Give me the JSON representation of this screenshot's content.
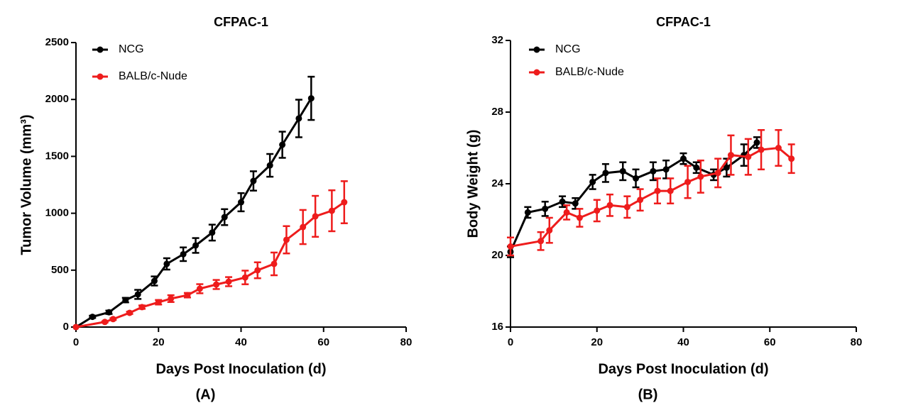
{
  "chart_data": [
    {
      "type": "line",
      "title": "CFPAC-1",
      "xlabel": "Days Post Inoculation (d)",
      "ylabel": "Tumor Volume (mm³)",
      "caption": "(A)",
      "xlim": [
        0,
        80
      ],
      "xticks": [
        0,
        20,
        40,
        60,
        80
      ],
      "ylim": [
        0,
        2500
      ],
      "yticks": [
        0,
        500,
        1000,
        1500,
        2000,
        2500
      ],
      "legend": "upper left",
      "series": [
        {
          "name": "NCG",
          "color": "#000000",
          "x": [
            0,
            4,
            8,
            12,
            15,
            19,
            22,
            26,
            29,
            33,
            36,
            40,
            43,
            47,
            50,
            54,
            57
          ],
          "values": [
            0,
            90,
            130,
            237,
            287,
            405,
            555,
            640,
            717,
            830,
            966,
            1097,
            1284,
            1421,
            1602,
            1833,
            2010
          ],
          "errors": [
            0,
            10,
            15,
            20,
            40,
            40,
            50,
            60,
            65,
            70,
            70,
            80,
            85,
            100,
            115,
            165,
            190
          ]
        },
        {
          "name": "BALB/c-Nude",
          "color": "#ee1c1c",
          "x": [
            0,
            7,
            9,
            13,
            16,
            20,
            23,
            27,
            30,
            34,
            37,
            41,
            44,
            48,
            51,
            55,
            58,
            62,
            65
          ],
          "values": [
            0,
            45,
            70,
            125,
            175,
            218,
            250,
            280,
            337,
            374,
            399,
            436,
            499,
            555,
            767,
            879,
            973,
            1022,
            1097
          ],
          "errors": [
            0,
            5,
            8,
            10,
            15,
            20,
            30,
            20,
            40,
            40,
            40,
            60,
            70,
            100,
            120,
            150,
            180,
            180,
            185
          ]
        }
      ]
    },
    {
      "type": "line",
      "title": "CFPAC-1",
      "xlabel": "Days Post Inoculation (d)",
      "ylabel": "Body Weight (g)",
      "caption": "(B)",
      "xlim": [
        0,
        80
      ],
      "xticks": [
        0,
        20,
        40,
        60,
        80
      ],
      "ylim": [
        16,
        32
      ],
      "yticks": [
        16,
        20,
        24,
        28,
        32
      ],
      "legend": "upper left",
      "series": [
        {
          "name": "NCG",
          "color": "#000000",
          "x": [
            0,
            4,
            8,
            12,
            15,
            19,
            22,
            26,
            29,
            33,
            36,
            40,
            43,
            47,
            50,
            54,
            57
          ],
          "values": [
            20.2,
            22.4,
            22.6,
            23.0,
            22.9,
            24.1,
            24.6,
            24.7,
            24.3,
            24.7,
            24.8,
            25.4,
            24.9,
            24.5,
            24.9,
            25.6,
            26.3
          ],
          "errors": [
            0.3,
            0.3,
            0.4,
            0.3,
            0.3,
            0.4,
            0.5,
            0.5,
            0.5,
            0.5,
            0.5,
            0.3,
            0.3,
            0.3,
            0.5,
            0.6,
            0.3
          ]
        },
        {
          "name": "BALB/c-Nude",
          "color": "#ee1c1c",
          "x": [
            0,
            7,
            9,
            13,
            16,
            20,
            23,
            27,
            30,
            34,
            37,
            41,
            44,
            48,
            51,
            55,
            58,
            62,
            65
          ],
          "values": [
            20.5,
            20.8,
            21.4,
            22.4,
            22.1,
            22.5,
            22.8,
            22.7,
            23.1,
            23.6,
            23.6,
            24.1,
            24.4,
            24.6,
            25.6,
            25.5,
            25.9,
            26.0,
            25.4
          ],
          "errors": [
            0.5,
            0.5,
            0.7,
            0.4,
            0.5,
            0.6,
            0.6,
            0.6,
            0.6,
            0.7,
            0.7,
            0.9,
            0.9,
            0.8,
            1.1,
            1.0,
            1.1,
            1.0,
            0.8
          ]
        }
      ]
    }
  ]
}
